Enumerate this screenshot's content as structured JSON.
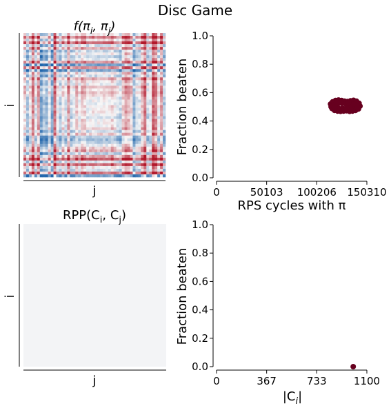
{
  "figure": {
    "suptitle": "Disc Game"
  },
  "chart_data": [
    {
      "type": "heatmap",
      "title": "f(π",
      "title_sub_i": "i",
      "title_mid": ", π",
      "title_sub_j": "j",
      "title_end": ")",
      "xlabel": "j",
      "ylabel": "i",
      "colormap": "RdBu",
      "colors": {
        "low": "#b2182b",
        "mid": "#f7f7f7",
        "high": "#2166ac"
      }
    },
    {
      "type": "scatter",
      "title": "",
      "xlabel": "RPS cycles with π",
      "ylabel": "Fraction beaten",
      "xticks": [
        "0",
        "50103",
        "100206",
        "150310"
      ],
      "yticks": [
        "0.0",
        "0.2",
        "0.4",
        "0.6",
        "0.8",
        "1.0"
      ],
      "xlim": [
        0,
        150310
      ],
      "ylim": [
        0,
        1
      ],
      "color": "#67001f",
      "series": [
        {
          "points": [
            [
              114000,
              0.52
            ],
            [
              116000,
              0.535
            ],
            [
              119000,
              0.545
            ],
            [
              122000,
              0.548
            ],
            [
              125000,
              0.545
            ],
            [
              128000,
              0.54
            ],
            [
              131000,
              0.538
            ],
            [
              134000,
              0.542
            ],
            [
              137000,
              0.546
            ],
            [
              140000,
              0.54
            ],
            [
              142500,
              0.525
            ],
            [
              143500,
              0.505
            ],
            [
              142000,
              0.485
            ],
            [
              139000,
              0.475
            ],
            [
              136000,
              0.47
            ],
            [
              133000,
              0.468
            ],
            [
              130000,
              0.472
            ],
            [
              127000,
              0.47
            ],
            [
              124000,
              0.468
            ],
            [
              121000,
              0.47
            ],
            [
              118000,
              0.475
            ],
            [
              115500,
              0.488
            ],
            [
              114500,
              0.5
            ],
            [
              117000,
              0.51
            ],
            [
              121000,
              0.52
            ],
            [
              125000,
              0.525
            ],
            [
              129000,
              0.522
            ],
            [
              133000,
              0.52
            ],
            [
              137000,
              0.518
            ],
            [
              140000,
              0.51
            ],
            [
              138000,
              0.495
            ],
            [
              134000,
              0.49
            ],
            [
              130000,
              0.492
            ],
            [
              126000,
              0.49
            ],
            [
              122000,
              0.49
            ],
            [
              118500,
              0.495
            ],
            [
              120000,
              0.53
            ],
            [
              132000,
              0.53
            ],
            [
              128000,
              0.48
            ],
            [
              141000,
              0.495
            ]
          ]
        }
      ]
    },
    {
      "type": "heatmap",
      "title": "RPP(C",
      "title_sub_i": "i",
      "title_mid": ", C",
      "title_sub_j": "j",
      "title_end": ")",
      "xlabel": "j",
      "ylabel": "i",
      "fill_color": "#f3f4f6"
    },
    {
      "type": "scatter",
      "title": "",
      "xlabel": "|C",
      "xlabel_sub": "i",
      "xlabel_end": "|",
      "ylabel": "Fraction beaten",
      "xticks": [
        "0",
        "367",
        "733",
        "1100"
      ],
      "yticks": [
        "0.0",
        "0.2",
        "0.4",
        "0.6",
        "0.8",
        "1.0"
      ],
      "xlim": [
        0,
        1100
      ],
      "ylim": [
        0,
        1
      ],
      "color": "#67001f",
      "series": [
        {
          "points": [
            [
              1000,
              0.0
            ]
          ]
        }
      ]
    }
  ]
}
